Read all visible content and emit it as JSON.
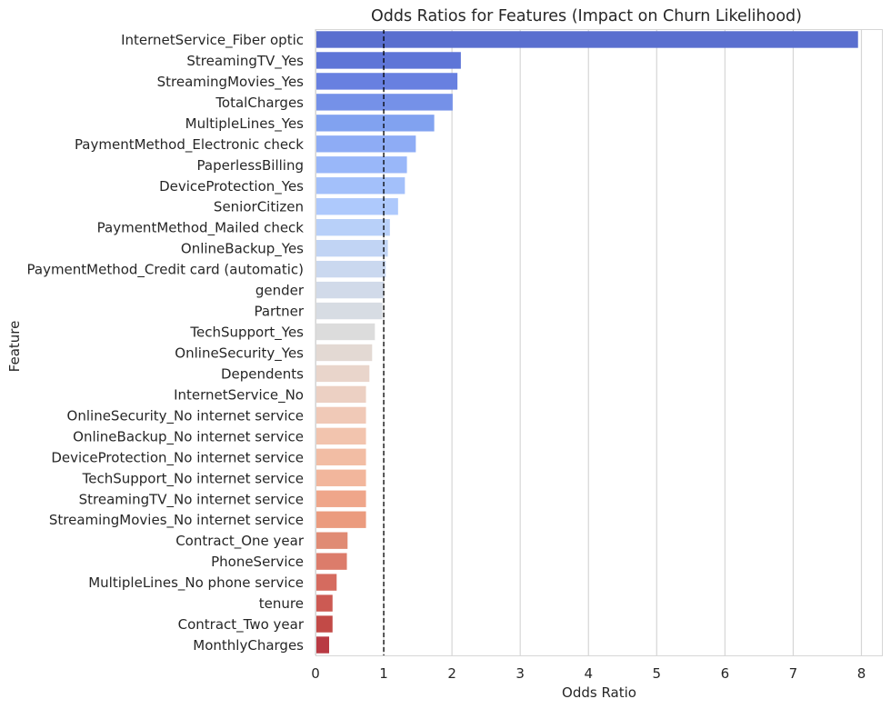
{
  "chart_data": {
    "type": "bar",
    "orientation": "horizontal",
    "title": "Odds Ratios for Features (Impact on Churn Likelihood)",
    "xlabel": "Odds Ratio",
    "ylabel": "Feature",
    "xlim": [
      0,
      8.3
    ],
    "xticks": [
      "0",
      "1",
      "2",
      "3",
      "4",
      "5",
      "6",
      "7",
      "8"
    ],
    "grid": "vertical",
    "reference_line": {
      "x": 1,
      "style": "dashed",
      "color": "#000000"
    },
    "palette": "coolwarm",
    "categories": [
      "InternetService_Fiber optic",
      "StreamingTV_Yes",
      "StreamingMovies_Yes",
      "TotalCharges",
      "MultipleLines_Yes",
      "PaymentMethod_Electronic check",
      "PaperlessBilling",
      "DeviceProtection_Yes",
      "SeniorCitizen",
      "PaymentMethod_Mailed check",
      "OnlineBackup_Yes",
      "PaymentMethod_Credit card (automatic)",
      "gender",
      "Partner",
      "TechSupport_Yes",
      "OnlineSecurity_Yes",
      "Dependents",
      "InternetService_No",
      "OnlineSecurity_No internet service",
      "OnlineBackup_No internet service",
      "DeviceProtection_No internet service",
      "TechSupport_No internet service",
      "StreamingTV_No internet service",
      "StreamingMovies_No internet service",
      "Contract_One year",
      "PhoneService",
      "MultipleLines_No phone service",
      "tenure",
      "Contract_Two year",
      "MonthlyCharges"
    ],
    "values": [
      7.95,
      2.13,
      2.08,
      2.01,
      1.74,
      1.47,
      1.34,
      1.31,
      1.21,
      1.09,
      1.06,
      1.03,
      1.0,
      0.98,
      0.87,
      0.83,
      0.79,
      0.74,
      0.74,
      0.74,
      0.74,
      0.74,
      0.74,
      0.74,
      0.47,
      0.46,
      0.31,
      0.25,
      0.25,
      0.2
    ],
    "colors": [
      "#5a6fcf",
      "#5e75d7",
      "#6880e0",
      "#7591e8",
      "#81a2f0",
      "#8eacf5",
      "#99b7f9",
      "#a3c0fa",
      "#aec9fc",
      "#b8d0f9",
      "#c1d4f4",
      "#cad8ef",
      "#d1dae9",
      "#d7dce3",
      "#dcdcdc",
      "#e3d9d3",
      "#e9d5cb",
      "#ecd0c3",
      "#f0c9b7",
      "#f2c4ae",
      "#f2bda4",
      "#f2b69c",
      "#efa68a",
      "#eb9b7e",
      "#e08b74",
      "#dc7c6b",
      "#d56b5f",
      "#cc5a53",
      "#c24a47",
      "#b93a43"
    ]
  }
}
